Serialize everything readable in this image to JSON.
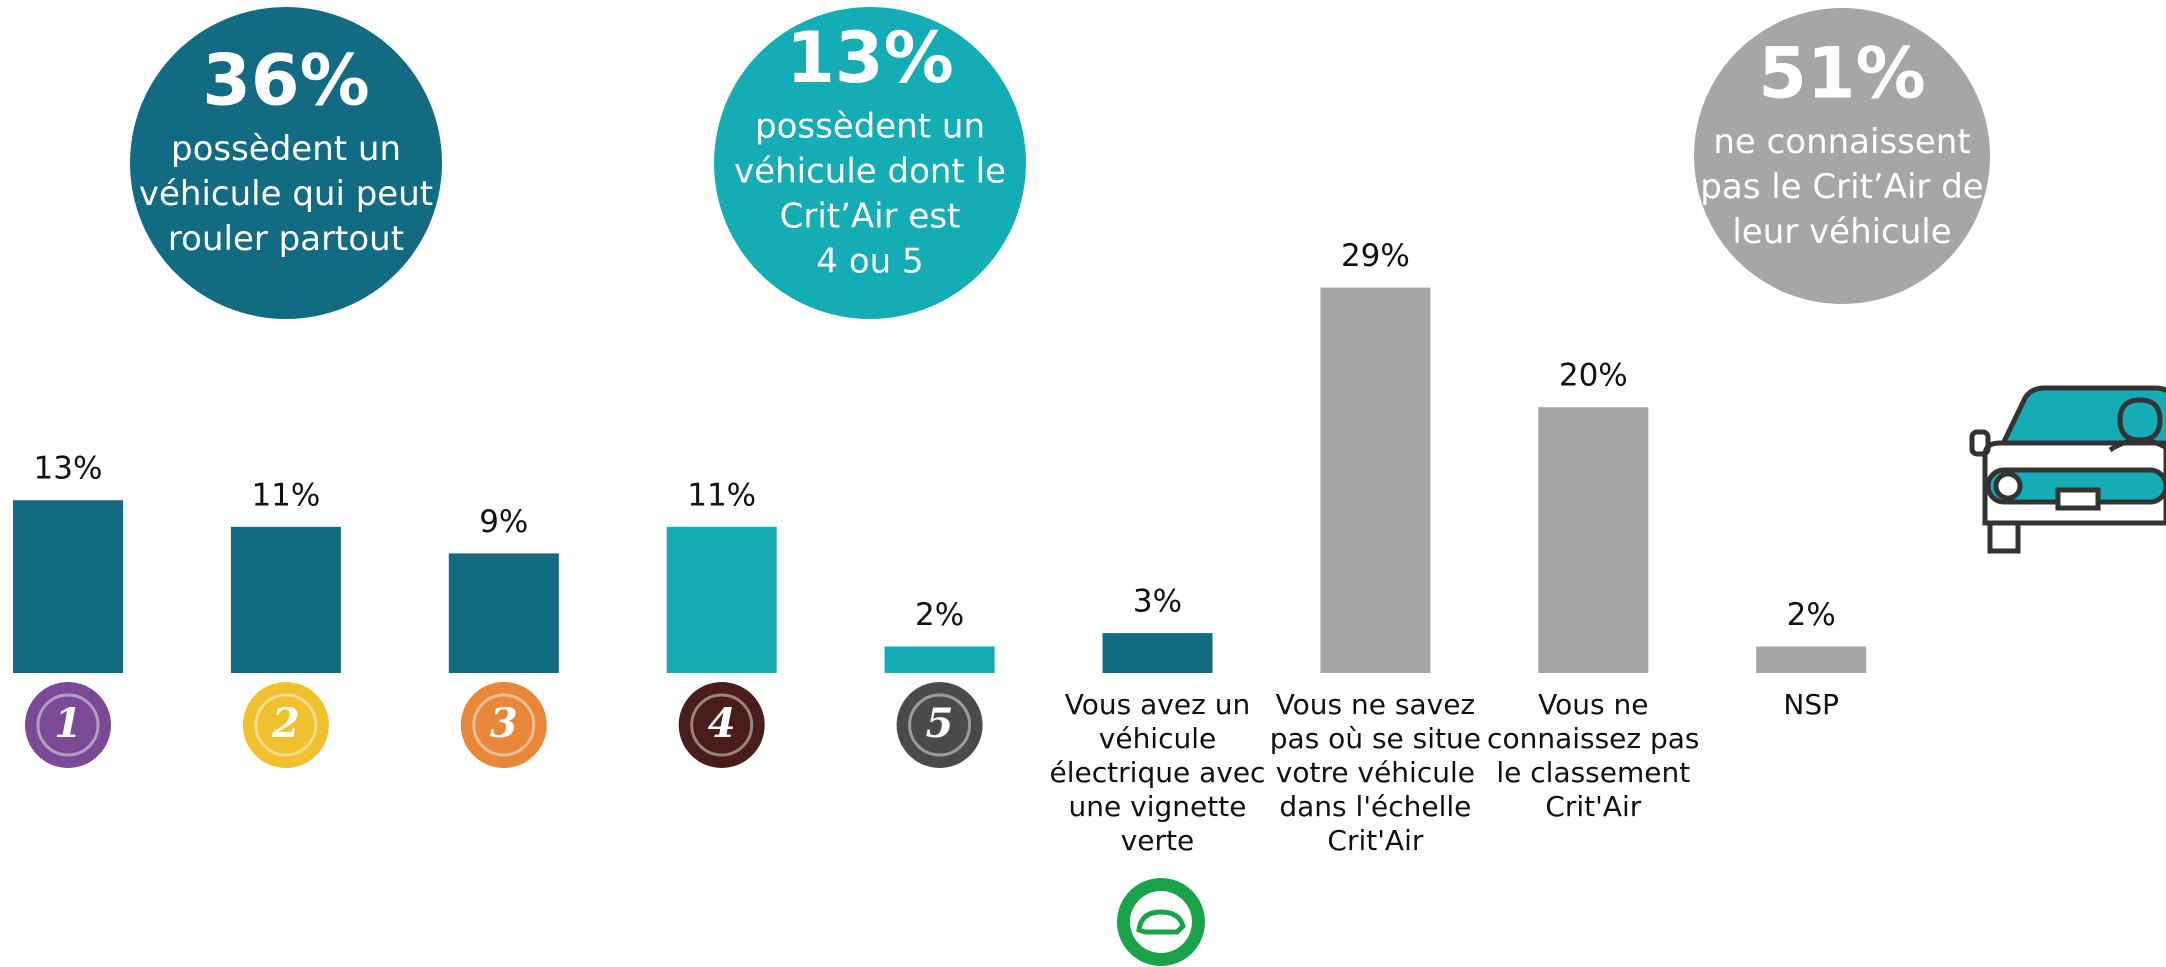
{
  "chart_data": {
    "type": "bar",
    "categories": [
      "1",
      "2",
      "3",
      "4",
      "5",
      "Vous avez un véhicule électrique avec une vignette verte",
      "Vous ne savez pas où se situe votre véhicule dans l'échelle Crit'Air",
      "Vous ne connaissez pas le classement Crit'Air",
      "NSP"
    ],
    "values": [
      13,
      11,
      9,
      11,
      2,
      3,
      29,
      20,
      2
    ],
    "value_labels": [
      "13%",
      "11%",
      "9%",
      "11%",
      "2%",
      "3%",
      "29%",
      "20%",
      "2%"
    ],
    "colors": [
      "#126b82",
      "#126b82",
      "#126b82",
      "#14adb5",
      "#14adb5",
      "#126b82",
      "#a6a6a6",
      "#a6a6a6",
      "#a6a6a6"
    ],
    "badge_colors": [
      "#7b4a96",
      "#f0c02f",
      "#e8873a",
      "#4a1d1d",
      "#4a4a4a"
    ],
    "annotations": [
      {
        "value": 36,
        "label": "36%",
        "lines": [
          "possèdent un",
          "véhicule qui peut",
          "rouler partout"
        ],
        "color": "#126b82"
      },
      {
        "value": 13,
        "label": "13%",
        "lines": [
          "possèdent un",
          "véhicule dont le",
          "Crit’Air est",
          "4 ou 5"
        ],
        "color": "#14adb5"
      },
      {
        "value": 51,
        "label": "51%",
        "lines": [
          "ne connaissent",
          "pas le Crit’Air de",
          "leur véhicule"
        ],
        "color": "#a6a6a6"
      }
    ]
  }
}
